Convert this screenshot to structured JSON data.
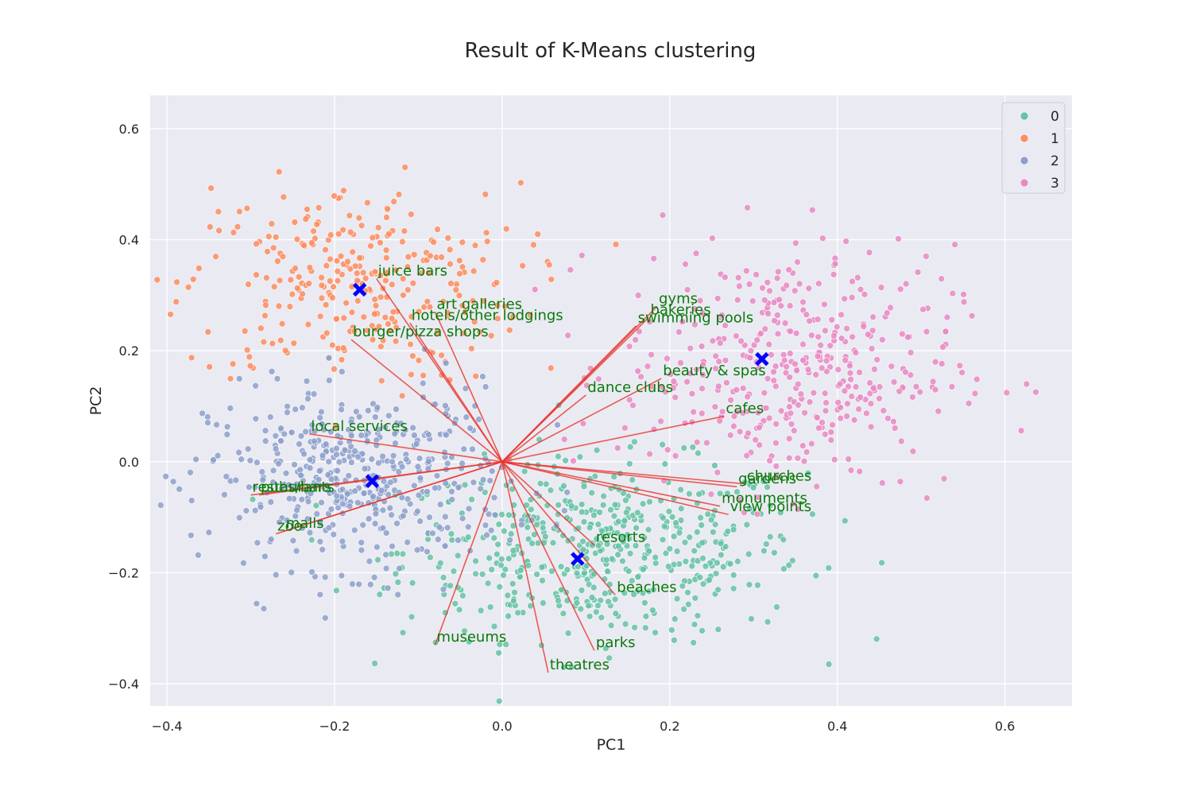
{
  "chart_data": {
    "type": "scatter",
    "title": "Result of K-Means clustering",
    "xlabel": "PC1",
    "ylabel": "PC2",
    "xlim": [
      -0.42,
      0.68
    ],
    "ylim": [
      -0.44,
      0.66
    ],
    "xticks": [
      -0.4,
      -0.2,
      0.0,
      0.2,
      0.4,
      0.6
    ],
    "yticks": [
      -0.4,
      -0.2,
      0.0,
      0.2,
      0.4,
      0.6
    ],
    "grid": true,
    "legend_position": "top-right",
    "series": [
      {
        "name": "0",
        "color": "#66c2a5",
        "points_shown": "approximate cloud",
        "center": [
          0.12,
          -0.16
        ],
        "spread": [
          0.12,
          0.08
        ]
      },
      {
        "name": "1",
        "color": "#fc8d62",
        "points_shown": "approximate cloud",
        "center": [
          -0.18,
          0.32
        ],
        "spread": [
          0.1,
          0.09
        ]
      },
      {
        "name": "2",
        "color": "#8da0cb",
        "points_shown": "approximate cloud",
        "center": [
          -0.17,
          -0.03
        ],
        "spread": [
          0.09,
          0.08
        ]
      },
      {
        "name": "3",
        "color": "#e78ac3",
        "points_shown": "approximate cloud",
        "center": [
          0.34,
          0.17
        ],
        "spread": [
          0.1,
          0.11
        ]
      }
    ],
    "centroids": [
      {
        "x": -0.17,
        "y": 0.31
      },
      {
        "x": 0.31,
        "y": 0.185
      },
      {
        "x": -0.155,
        "y": -0.035
      },
      {
        "x": 0.09,
        "y": -0.175
      }
    ],
    "centroid_color": "#0000ff",
    "loading_color": "#e8342c",
    "label_color": "#0a7a0a",
    "loadings": [
      {
        "label": "juice bars",
        "x": -0.15,
        "y": 0.33
      },
      {
        "label": "art galleries",
        "x": -0.08,
        "y": 0.27
      },
      {
        "label": "hotels/other lodgings",
        "x": -0.11,
        "y": 0.25
      },
      {
        "label": "burger/pizza shops",
        "x": -0.18,
        "y": 0.22
      },
      {
        "label": "local services",
        "x": -0.23,
        "y": 0.05
      },
      {
        "label": "restaurants",
        "x": -0.3,
        "y": -0.06
      },
      {
        "label": "pubs/bars",
        "x": -0.29,
        "y": -0.06
      },
      {
        "label": "zoo",
        "x": -0.27,
        "y": -0.13
      },
      {
        "label": "malls",
        "x": -0.26,
        "y": -0.125
      },
      {
        "label": "museums",
        "x": -0.08,
        "y": -0.33
      },
      {
        "label": "theatres",
        "x": 0.055,
        "y": -0.38
      },
      {
        "label": "parks",
        "x": 0.11,
        "y": -0.34
      },
      {
        "label": "beaches",
        "x": 0.135,
        "y": -0.24
      },
      {
        "label": "resorts",
        "x": 0.11,
        "y": -0.15
      },
      {
        "label": "monuments",
        "x": 0.26,
        "y": -0.08
      },
      {
        "label": "view points",
        "x": 0.27,
        "y": -0.095
      },
      {
        "label": "gardens",
        "x": 0.28,
        "y": -0.045
      },
      {
        "label": "churches",
        "x": 0.29,
        "y": -0.04
      },
      {
        "label": "cafes",
        "x": 0.265,
        "y": 0.082
      },
      {
        "label": "beauty & spas",
        "x": 0.19,
        "y": 0.15
      },
      {
        "label": "dance clubs",
        "x": 0.1,
        "y": 0.12
      },
      {
        "label": "swimming pools",
        "x": 0.16,
        "y": 0.245
      },
      {
        "label": "bakeries",
        "x": 0.175,
        "y": 0.26
      },
      {
        "label": "gyms",
        "x": 0.185,
        "y": 0.28
      }
    ]
  }
}
